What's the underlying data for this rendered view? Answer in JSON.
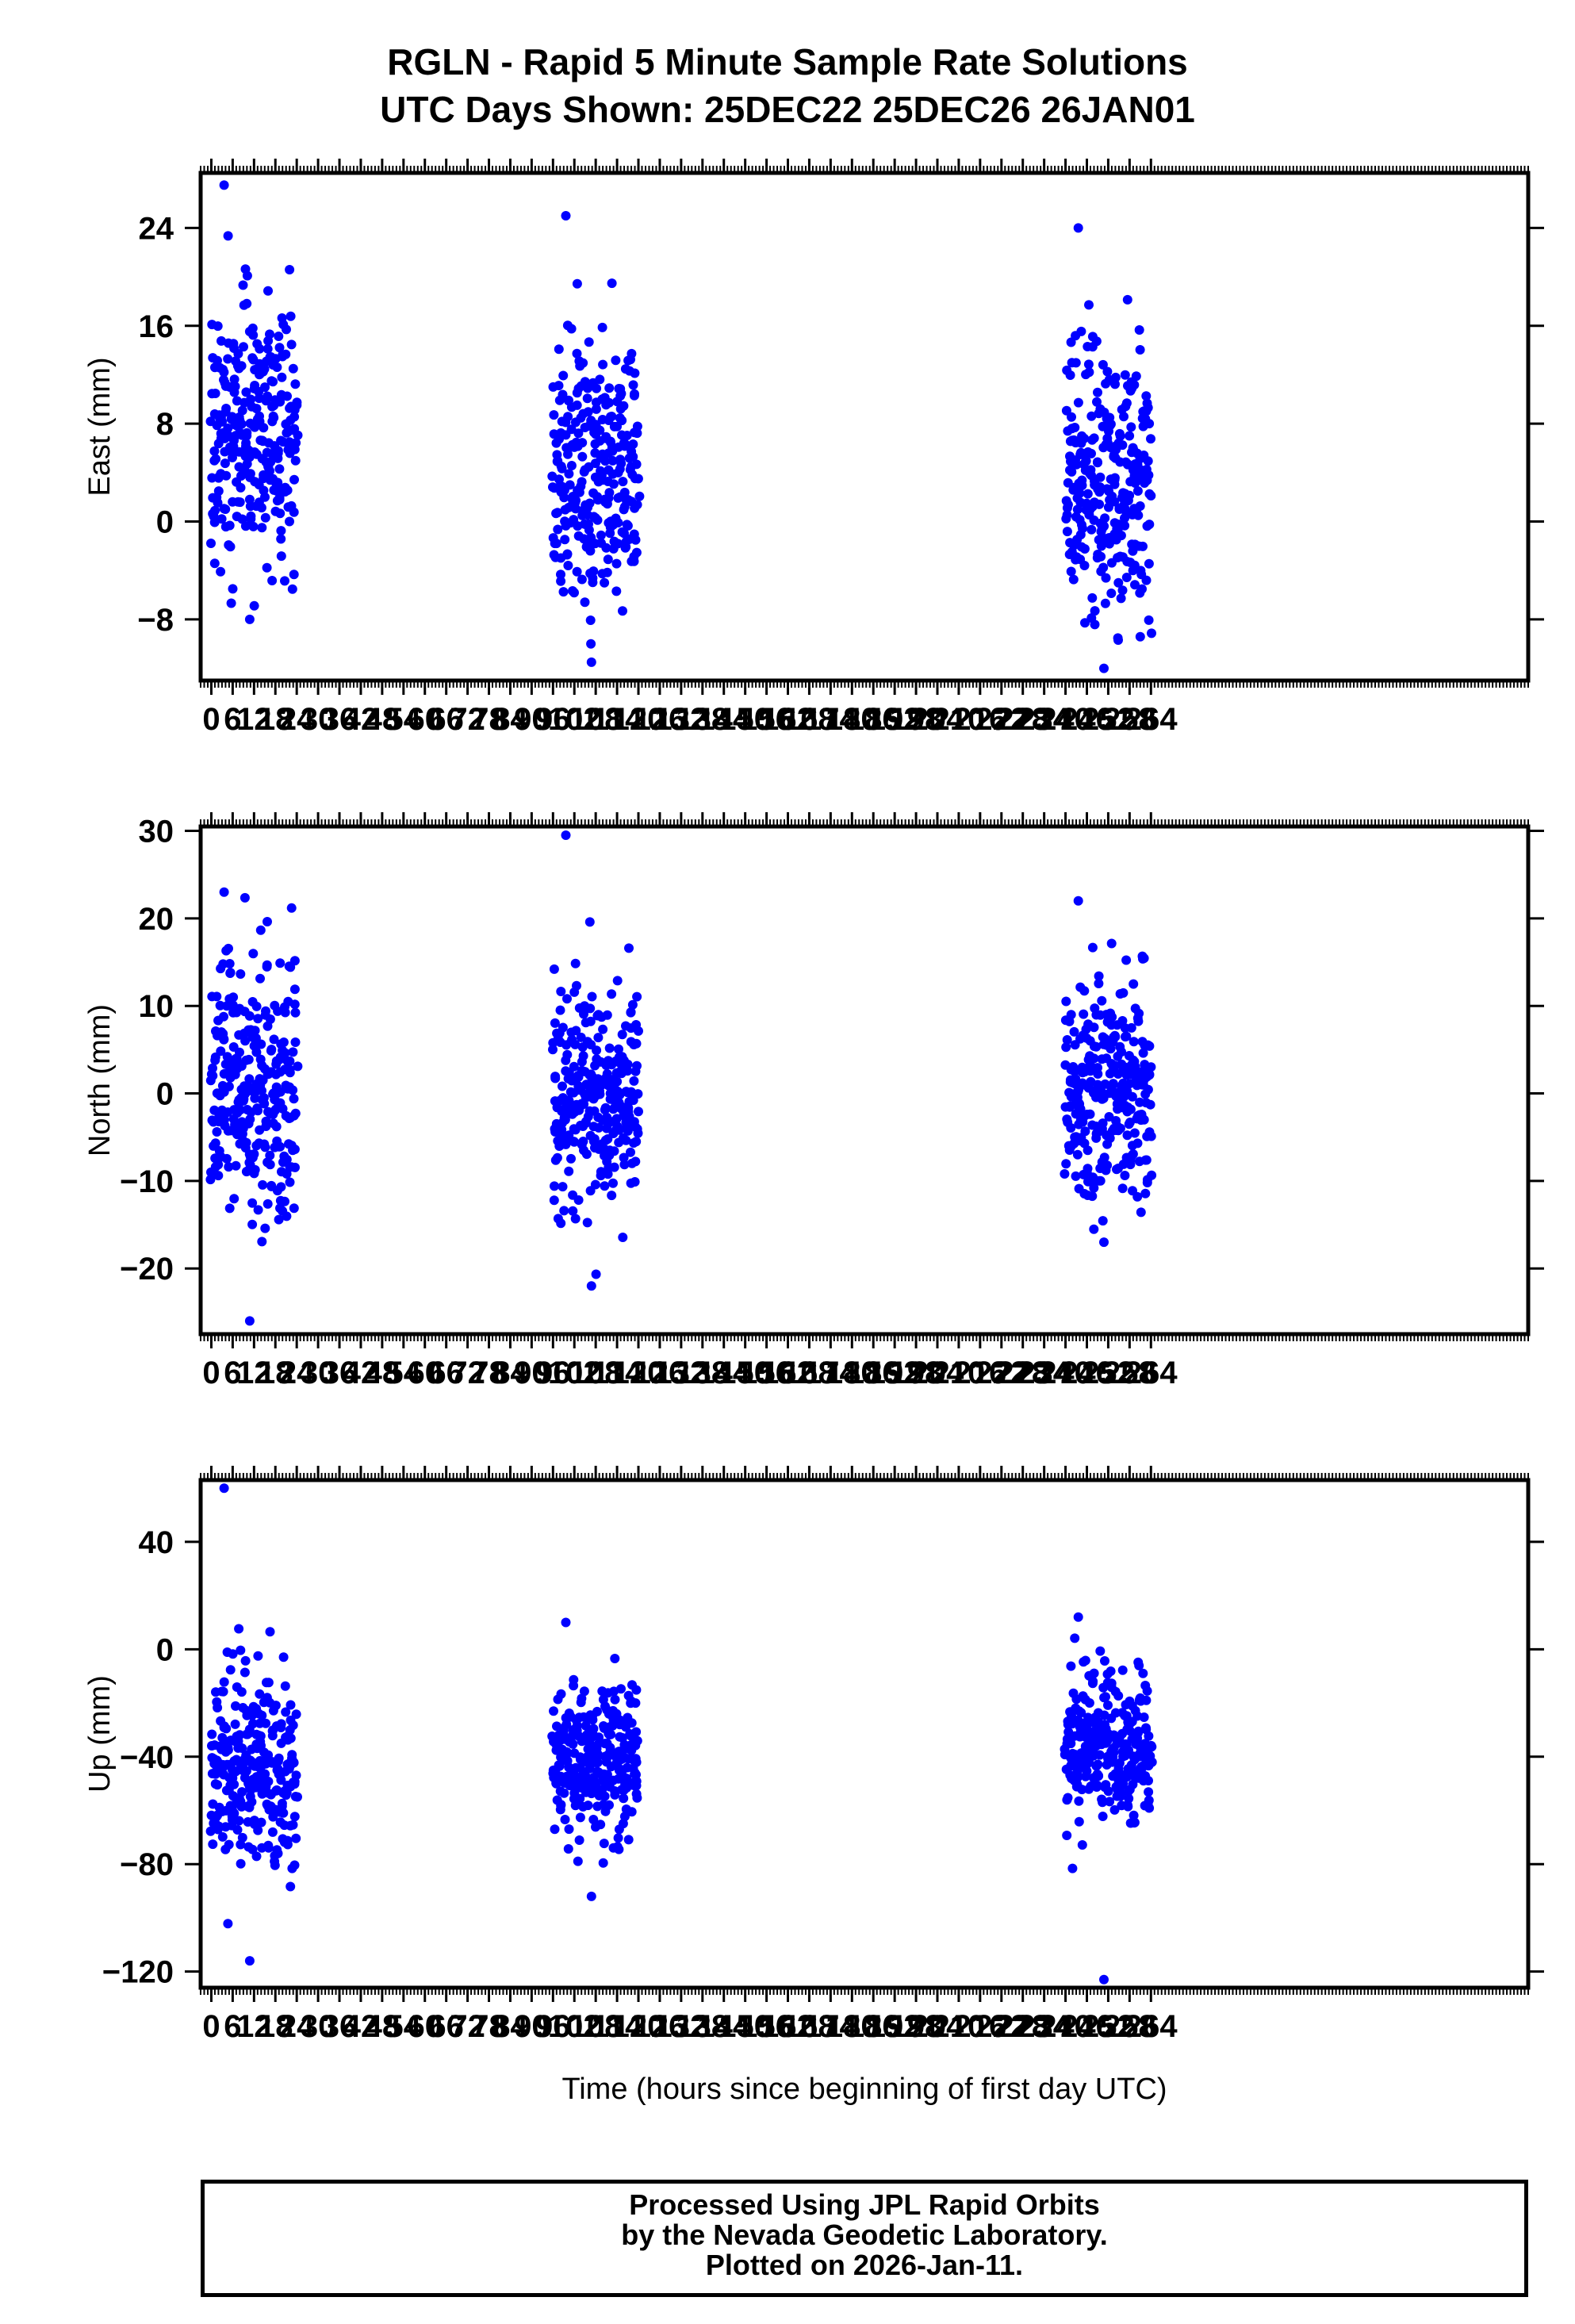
{
  "header": {
    "title": "RGLN - Rapid 5 Minute Sample Rate Solutions",
    "subtitle": "UTC Days Shown:  25DEC22 25DEC26 26JAN01"
  },
  "footer": {
    "line1": "Processed Using JPL Rapid Orbits",
    "line2": "by the Nevada Geodetic Laboratory.",
    "line3": "Plotted on 2026-Jan-11."
  },
  "colors": {
    "points": "#0000ff",
    "axes": "#000000"
  },
  "x_axis": {
    "label": "Time (hours since beginning of first day UTC)",
    "xlim": [
      -3,
      370
    ],
    "ticks": [
      0,
      6,
      12,
      18,
      24,
      30,
      36,
      42,
      48,
      54,
      60,
      66,
      72,
      78,
      84,
      90,
      96,
      102,
      108,
      114,
      120,
      126,
      132,
      138,
      144,
      150,
      156,
      162,
      168,
      174,
      180,
      186,
      192,
      198,
      204,
      210,
      216,
      222,
      228,
      234,
      240,
      246,
      252,
      258,
      264
    ],
    "tick_labels": [
      "0",
      "6",
      "12",
      "18",
      "24",
      "30",
      "36",
      "42",
      "48",
      "54",
      "60",
      "66",
      "72",
      "78",
      "84",
      "90",
      "96",
      "102",
      "108",
      "114",
      "120",
      "126",
      "132",
      "138",
      "144",
      "150",
      "156",
      "162",
      "168",
      "174",
      "180",
      "186",
      "192",
      "198",
      "204",
      "210",
      "216",
      "222",
      "228",
      "234",
      "240",
      "246",
      "252",
      "258",
      "264"
    ]
  },
  "chart_data": [
    {
      "type": "scatter",
      "name": "east",
      "ylabel": "East (mm)",
      "ylim": [
        -13,
        28.5
      ],
      "yticks": [
        -8,
        0,
        8,
        16,
        24
      ],
      "ytick_labels": [
        "−8",
        "0",
        "8",
        "16",
        "24"
      ],
      "segments": [
        {
          "x_range": [
            0,
            24
          ],
          "center": 7,
          "spread": 5.5,
          "seed": 11,
          "min": -8,
          "max": 27.5
        },
        {
          "x_range": [
            96,
            120
          ],
          "center": 4,
          "spread": 5.5,
          "seed": 12,
          "min": -11.5,
          "max": 25
        },
        {
          "x_range": [
            240,
            264
          ],
          "center": 3.5,
          "spread": 5.5,
          "seed": 13,
          "min": -12,
          "max": 24
        }
      ]
    },
    {
      "type": "scatter",
      "name": "north",
      "ylabel": "North (mm)",
      "ylim": [
        -27.5,
        30.5
      ],
      "yticks": [
        -20,
        -10,
        0,
        10,
        20,
        30
      ],
      "ytick_labels": [
        "−20",
        "−10",
        "0",
        "10",
        "20",
        "30"
      ],
      "segments": [
        {
          "x_range": [
            0,
            24
          ],
          "center": 0,
          "spread": 8,
          "seed": 21,
          "min": -26,
          "max": 23
        },
        {
          "x_range": [
            96,
            120
          ],
          "center": -1,
          "spread": 6,
          "seed": 22,
          "min": -22,
          "max": 29.5
        },
        {
          "x_range": [
            240,
            264
          ],
          "center": 0,
          "spread": 6.5,
          "seed": 23,
          "min": -17,
          "max": 22
        }
      ]
    },
    {
      "type": "scatter",
      "name": "up",
      "ylabel": "Up (mm)",
      "ylim": [
        -126,
        63
      ],
      "yticks": [
        -120,
        -80,
        -40,
        0,
        40
      ],
      "ytick_labels": [
        "−120",
        "−80",
        "−40",
        "0",
        "40"
      ],
      "segments": [
        {
          "x_range": [
            0,
            24
          ],
          "center": -45,
          "spread": 18,
          "seed": 31,
          "min": -116,
          "max": 60
        },
        {
          "x_range": [
            96,
            120
          ],
          "center": -40,
          "spread": 13,
          "seed": 32,
          "min": -92,
          "max": 10
        },
        {
          "x_range": [
            240,
            264
          ],
          "center": -35,
          "spread": 15,
          "seed": 33,
          "min": -123,
          "max": 12
        }
      ]
    }
  ]
}
